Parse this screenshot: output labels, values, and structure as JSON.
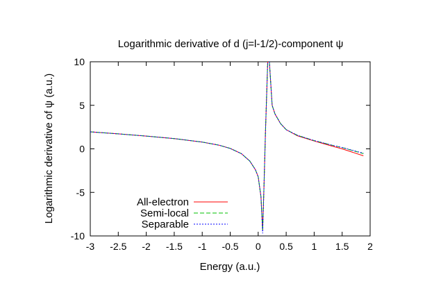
{
  "chart_data": {
    "type": "line",
    "title": "Logarithmic derivative of d (j=l-1/2)-component ψ",
    "xlabel": "Energy (a.u.)",
    "ylabel": "Logarithmic derivative of ψ (a.u.)",
    "xlim": [
      -3,
      2
    ],
    "ylim": [
      -10,
      10
    ],
    "xticks": [
      "-3",
      "-2.5",
      "-2",
      "-1.5",
      "-1",
      "-0.5",
      "0",
      "0.5",
      "1",
      "1.5",
      "2"
    ],
    "yticks": [
      "10",
      "5",
      "0",
      "-5",
      "-10"
    ],
    "grid": false,
    "legend_position": "bottom-left",
    "series": [
      {
        "name": "All-electron",
        "color": "#ff0000",
        "dash": "solid",
        "segments": [
          [
            [
              -3.0,
              1.95
            ],
            [
              -2.5,
              1.72
            ],
            [
              -2.0,
              1.47
            ],
            [
              -1.5,
              1.18
            ],
            [
              -1.0,
              0.78
            ],
            [
              -0.7,
              0.42
            ],
            [
              -0.5,
              0.05
            ],
            [
              -0.3,
              -0.55
            ],
            [
              -0.15,
              -1.4
            ],
            [
              -0.05,
              -2.4
            ],
            [
              0.0,
              -3.2
            ],
            [
              0.05,
              -5.5
            ],
            [
              0.08,
              -9.4
            ],
            [
              0.1,
              -5.0
            ],
            [
              0.13,
              2.0
            ],
            [
              0.15,
              6.0
            ],
            [
              0.17,
              10.0
            ]
          ],
          [
            [
              0.2,
              10.0
            ],
            [
              0.22,
              8.0
            ],
            [
              0.25,
              5.0
            ],
            [
              0.3,
              4.0
            ],
            [
              0.4,
              2.9
            ],
            [
              0.5,
              2.2
            ],
            [
              0.7,
              1.5
            ],
            [
              1.0,
              0.9
            ],
            [
              1.3,
              0.35
            ],
            [
              1.5,
              0.0
            ],
            [
              1.88,
              -0.8
            ]
          ]
        ]
      },
      {
        "name": "Semi-local",
        "color": "#00c000",
        "dash": "dashed",
        "segments": [
          [
            [
              -3.0,
              1.95
            ],
            [
              -2.5,
              1.72
            ],
            [
              -2.0,
              1.47
            ],
            [
              -1.5,
              1.18
            ],
            [
              -1.0,
              0.78
            ],
            [
              -0.7,
              0.42
            ],
            [
              -0.5,
              0.05
            ],
            [
              -0.3,
              -0.55
            ],
            [
              -0.15,
              -1.4
            ],
            [
              -0.05,
              -2.4
            ],
            [
              0.0,
              -3.2
            ],
            [
              0.05,
              -5.5
            ],
            [
              0.08,
              -9.4
            ],
            [
              0.1,
              -5.0
            ],
            [
              0.13,
              2.0
            ],
            [
              0.15,
              6.0
            ],
            [
              0.17,
              10.0
            ]
          ],
          [
            [
              0.2,
              10.0
            ],
            [
              0.22,
              8.0
            ],
            [
              0.25,
              5.0
            ],
            [
              0.3,
              4.0
            ],
            [
              0.4,
              2.9
            ],
            [
              0.5,
              2.2
            ],
            [
              0.7,
              1.55
            ],
            [
              1.0,
              0.95
            ],
            [
              1.3,
              0.45
            ],
            [
              1.5,
              0.15
            ],
            [
              1.88,
              -0.55
            ]
          ]
        ]
      },
      {
        "name": "Separable",
        "color": "#0000ff",
        "dash": "dotted",
        "segments": [
          [
            [
              -3.0,
              1.95
            ],
            [
              -2.5,
              1.72
            ],
            [
              -2.0,
              1.47
            ],
            [
              -1.5,
              1.18
            ],
            [
              -1.0,
              0.78
            ],
            [
              -0.7,
              0.42
            ],
            [
              -0.5,
              0.05
            ],
            [
              -0.3,
              -0.55
            ],
            [
              -0.15,
              -1.4
            ],
            [
              -0.05,
              -2.4
            ],
            [
              0.0,
              -3.2
            ],
            [
              0.05,
              -5.5
            ],
            [
              0.08,
              -9.7
            ],
            [
              0.1,
              -5.0
            ],
            [
              0.13,
              2.0
            ],
            [
              0.15,
              6.0
            ],
            [
              0.17,
              10.0
            ]
          ],
          [
            [
              0.2,
              10.0
            ],
            [
              0.22,
              8.0
            ],
            [
              0.25,
              5.0
            ],
            [
              0.3,
              4.0
            ],
            [
              0.4,
              2.9
            ],
            [
              0.5,
              2.2
            ],
            [
              0.7,
              1.55
            ],
            [
              1.0,
              0.95
            ],
            [
              1.3,
              0.45
            ],
            [
              1.5,
              0.15
            ],
            [
              1.88,
              -0.5
            ]
          ]
        ]
      }
    ]
  }
}
